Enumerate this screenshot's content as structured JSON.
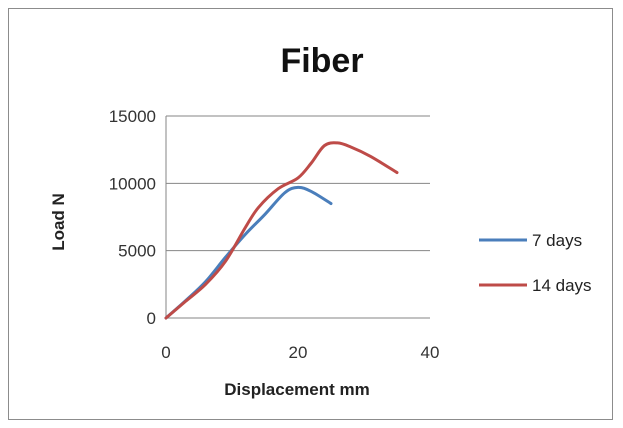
{
  "chart_data": {
    "type": "line",
    "title": "Fiber",
    "xlabel": "Displacement mm",
    "ylabel": "Load N",
    "xlim": [
      0,
      40
    ],
    "ylim": [
      0,
      15000
    ],
    "x_ticks": [
      0,
      20,
      40
    ],
    "y_ticks": [
      0,
      5000,
      10000,
      15000
    ],
    "grid": "horizontal",
    "legend_position": "right",
    "series": [
      {
        "name": "7 days",
        "color": "#4a7ebb",
        "points": [
          [
            0,
            0
          ],
          [
            3,
            1300
          ],
          [
            6,
            2700
          ],
          [
            9,
            4500
          ],
          [
            12,
            6200
          ],
          [
            15,
            7700
          ],
          [
            18,
            9300
          ],
          [
            20,
            9700
          ],
          [
            22,
            9400
          ],
          [
            25,
            8500
          ]
        ]
      },
      {
        "name": "14 days",
        "color": "#be4b48",
        "points": [
          [
            0,
            0
          ],
          [
            3,
            1250
          ],
          [
            6,
            2500
          ],
          [
            9,
            4200
          ],
          [
            12,
            6700
          ],
          [
            14,
            8200
          ],
          [
            17,
            9600
          ],
          [
            20,
            10400
          ],
          [
            22,
            11500
          ],
          [
            24,
            12800
          ],
          [
            26,
            13000
          ],
          [
            28,
            12700
          ],
          [
            31,
            12000
          ],
          [
            35,
            10800
          ]
        ]
      }
    ]
  }
}
